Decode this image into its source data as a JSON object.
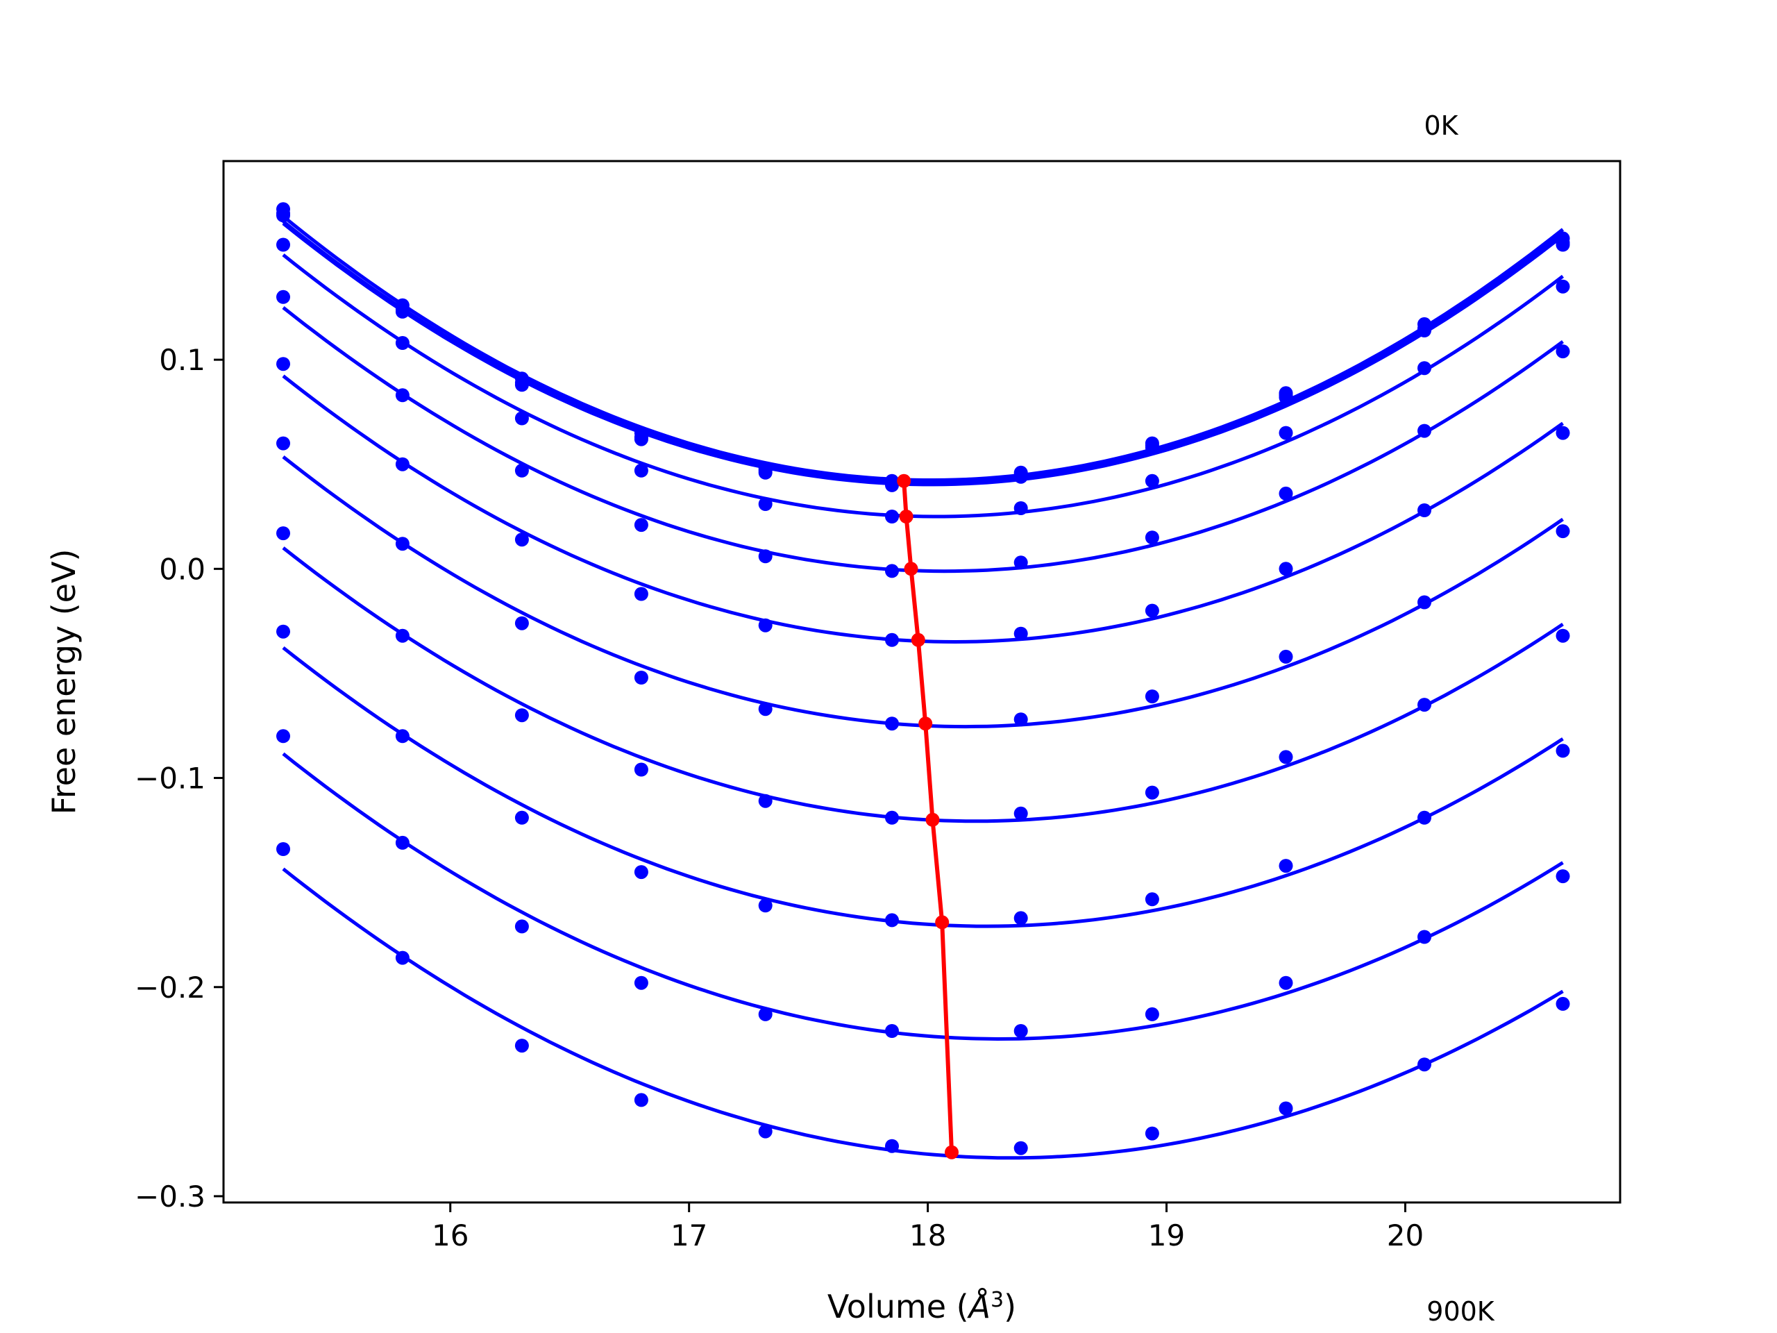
{
  "chart_data": {
    "type": "line",
    "xlabel_main": "Volume (",
    "xlabel_unit": "Å",
    "xlabel_sup": "3",
    "xlabel_close": ")",
    "ylabel": "Free energy (eV)",
    "xlim": [
      15.05,
      20.9
    ],
    "ylim": [
      -0.303,
      0.195
    ],
    "xticks": [
      16,
      17,
      18,
      19,
      20
    ],
    "xtick_labels": [
      "16",
      "17",
      "18",
      "19",
      "20"
    ],
    "yticks": [
      0.1,
      0.0,
      -0.1,
      -0.2,
      -0.3
    ],
    "ytick_labels": [
      "0.1",
      "0.0",
      "−0.1",
      "−0.2",
      "−0.3"
    ],
    "annotations": {
      "top": "0K",
      "bottom": "900K"
    },
    "grid": false,
    "colors": {
      "isotherms": "#0000ff",
      "minima": "#ff0000"
    },
    "x": [
      15.3,
      15.8,
      16.3,
      16.8,
      17.32,
      17.85,
      18.39,
      18.94,
      19.5,
      20.08,
      20.66
    ],
    "series": [
      {
        "values": [
          0.172,
          0.126,
          0.091,
          0.065,
          0.048,
          0.042,
          0.046,
          0.06,
          0.084,
          0.117,
          0.158
        ]
      },
      {
        "values": [
          0.17,
          0.124,
          0.089,
          0.063,
          0.047,
          0.041,
          0.045,
          0.059,
          0.083,
          0.115,
          0.156
        ]
      },
      {
        "values": [
          0.169,
          0.123,
          0.088,
          0.062,
          0.046,
          0.04,
          0.044,
          0.058,
          0.082,
          0.114,
          0.155
        ]
      },
      {
        "values": [
          0.155,
          0.108,
          0.072,
          0.047,
          0.031,
          0.025,
          0.029,
          0.042,
          0.065,
          0.096,
          0.135
        ]
      },
      {
        "values": [
          0.13,
          0.083,
          0.047,
          0.021,
          0.006,
          -0.001,
          0.003,
          0.015,
          0.036,
          0.066,
          0.104
        ]
      },
      {
        "values": [
          0.098,
          0.05,
          0.014,
          -0.012,
          -0.027,
          -0.034,
          -0.031,
          -0.02,
          0.0,
          0.028,
          0.065
        ]
      },
      {
        "values": [
          0.06,
          0.012,
          -0.026,
          -0.052,
          -0.067,
          -0.074,
          -0.072,
          -0.061,
          -0.042,
          -0.016,
          0.018
        ]
      },
      {
        "values": [
          0.017,
          -0.032,
          -0.07,
          -0.096,
          -0.111,
          -0.119,
          -0.117,
          -0.107,
          -0.09,
          -0.065,
          -0.032
        ]
      },
      {
        "values": [
          -0.03,
          -0.08,
          -0.119,
          -0.145,
          -0.161,
          -0.168,
          -0.167,
          -0.158,
          -0.142,
          -0.119,
          -0.087
        ]
      },
      {
        "values": [
          -0.08,
          -0.131,
          -0.171,
          -0.198,
          -0.213,
          -0.221,
          -0.221,
          -0.213,
          -0.198,
          -0.176,
          -0.147
        ]
      },
      {
        "values": [
          -0.134,
          -0.186,
          -0.228,
          -0.254,
          -0.269,
          -0.276,
          -0.277,
          -0.27,
          -0.258,
          -0.237,
          -0.208
        ]
      }
    ],
    "minima": {
      "x": [
        17.9,
        17.91,
        17.93,
        17.96,
        17.99,
        18.02,
        18.06,
        18.1
      ],
      "y": [
        0.042,
        0.025,
        0.0,
        -0.034,
        -0.074,
        -0.12,
        -0.169,
        -0.279
      ]
    }
  }
}
